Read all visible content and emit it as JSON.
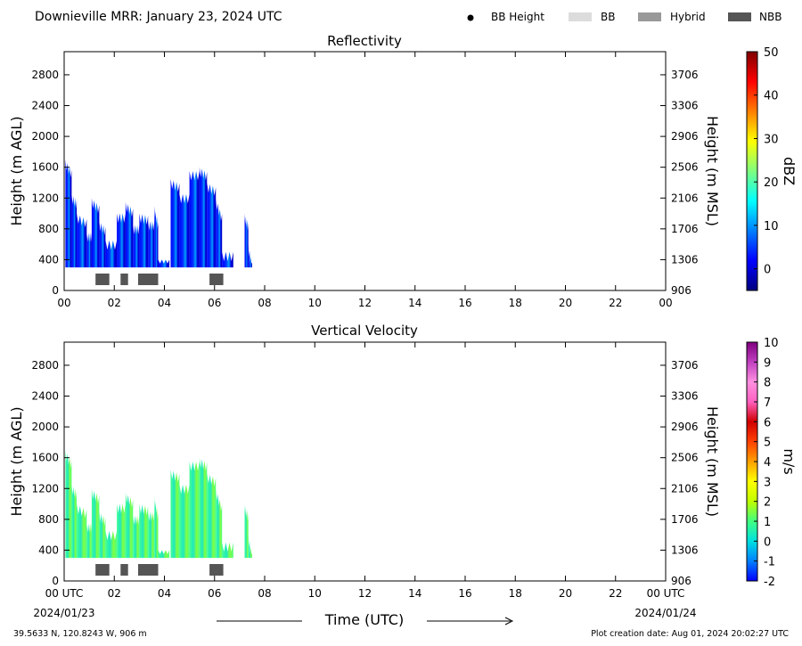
{
  "title": "Downieville MRR:  January 23, 2024 UTC",
  "legend": [
    {
      "label": "BB Height",
      "marker": "dot",
      "color": "#000000"
    },
    {
      "label": "BB",
      "marker": "rect",
      "color": "#dcdcdc"
    },
    {
      "label": "Hybrid",
      "marker": "rect",
      "color": "#999999"
    },
    {
      "label": "NBB",
      "marker": "rect",
      "color": "#555555"
    }
  ],
  "footer": {
    "location": "39.5633 N, 120.8243 W, 906 m",
    "creation": "Plot creation date: Aug 01, 2024 20:02:27 UTC"
  },
  "x_axis": {
    "label": "Time (UTC)",
    "start_label": "00 UTC",
    "start_date": "2024/01/23",
    "end_label": "00 UTC",
    "end_date": "2024/01/24"
  },
  "chart_data": [
    {
      "type": "heatmap",
      "title": "Reflectivity",
      "ylabel": "Height (m AGL)",
      "ylabel_right": "Height (m MSL)",
      "xlim": [
        0,
        24
      ],
      "ylim": [
        0,
        3100
      ],
      "x_ticks": [
        "00",
        "02",
        "04",
        "06",
        "08",
        "10",
        "12",
        "14",
        "16",
        "18",
        "20",
        "22",
        "00"
      ],
      "y_ticks": [
        0,
        400,
        800,
        1200,
        1600,
        2000,
        2400,
        2800
      ],
      "y_ticks_right": [
        906,
        1306,
        1706,
        2106,
        2506,
        2906,
        3306,
        3706
      ],
      "colorbar": {
        "label": "dBZ",
        "min": -5,
        "max": 50,
        "ticks": [
          0,
          10,
          20,
          30,
          40,
          50
        ],
        "colormap": [
          "#00007f",
          "#0000ff",
          "#007fff",
          "#00ffff",
          "#7fff7f",
          "#ffff00",
          "#ff7f00",
          "#ff0000",
          "#7f0000"
        ]
      },
      "echo_tops_m": [
        [
          0.05,
          1700
        ],
        [
          0.3,
          1250
        ],
        [
          0.5,
          1000
        ],
        [
          0.9,
          750
        ],
        [
          1.1,
          1200
        ],
        [
          1.4,
          900
        ],
        [
          1.65,
          650
        ],
        [
          2.1,
          1000
        ],
        [
          2.45,
          1150
        ],
        [
          2.75,
          850
        ],
        [
          3.0,
          1000
        ],
        [
          3.35,
          900
        ],
        [
          3.6,
          1100
        ],
        [
          3.75,
          400
        ],
        [
          4.25,
          1450
        ],
        [
          4.6,
          1250
        ],
        [
          5.0,
          1550
        ],
        [
          5.4,
          1600
        ],
        [
          5.7,
          1400
        ],
        [
          6.05,
          1200
        ],
        [
          6.3,
          500
        ],
        [
          7.2,
          1000
        ],
        [
          7.35,
          600
        ]
      ],
      "echo_base_m": 300,
      "bb_classes": [
        {
          "class": "NBB",
          "start": 1.25,
          "end": 1.8
        },
        {
          "class": "NBB",
          "start": 2.25,
          "end": 2.55
        },
        {
          "class": "NBB",
          "start": 2.95,
          "end": 3.75
        },
        {
          "class": "NBB",
          "start": 5.8,
          "end": 6.35
        }
      ]
    },
    {
      "type": "heatmap",
      "title": "Vertical Velocity",
      "ylabel": "Height (m AGL)",
      "ylabel_right": "Height (m MSL)",
      "xlim": [
        0,
        24
      ],
      "ylim": [
        0,
        3100
      ],
      "x_ticks": [
        "00 UTC",
        "02",
        "04",
        "06",
        "08",
        "10",
        "12",
        "14",
        "16",
        "18",
        "20",
        "22",
        "00 UTC"
      ],
      "y_ticks": [
        0,
        400,
        800,
        1200,
        1600,
        2000,
        2400,
        2800
      ],
      "y_ticks_right": [
        906,
        1306,
        1706,
        2106,
        2506,
        2906,
        3306,
        3706
      ],
      "colorbar": {
        "label": "m/s",
        "min": -2,
        "max": 10,
        "ticks": [
          -2,
          -1,
          0,
          1,
          2,
          3,
          4,
          5,
          6,
          7,
          8,
          9,
          10
        ],
        "colormap": [
          "#0000ff",
          "#0080ff",
          "#00e0e0",
          "#40ff80",
          "#c0ff00",
          "#ffff00",
          "#ffa000",
          "#ff4000",
          "#d00000",
          "#ff60c0",
          "#ff90e0",
          "#c040c0",
          "#800080"
        ]
      },
      "echo_tops_m": [
        [
          0.05,
          1700
        ],
        [
          0.3,
          1250
        ],
        [
          0.5,
          1000
        ],
        [
          0.9,
          750
        ],
        [
          1.1,
          1200
        ],
        [
          1.4,
          900
        ],
        [
          1.65,
          650
        ],
        [
          2.1,
          1000
        ],
        [
          2.45,
          1150
        ],
        [
          2.75,
          850
        ],
        [
          3.0,
          1000
        ],
        [
          3.35,
          900
        ],
        [
          3.6,
          1100
        ],
        [
          3.75,
          400
        ],
        [
          4.25,
          1450
        ],
        [
          4.6,
          1250
        ],
        [
          5.0,
          1550
        ],
        [
          5.4,
          1600
        ],
        [
          5.7,
          1400
        ],
        [
          6.05,
          1200
        ],
        [
          6.3,
          500
        ],
        [
          7.2,
          1000
        ],
        [
          7.35,
          600
        ]
      ],
      "echo_base_m": 300,
      "bb_classes": [
        {
          "class": "NBB",
          "start": 1.25,
          "end": 1.8
        },
        {
          "class": "NBB",
          "start": 2.25,
          "end": 2.55
        },
        {
          "class": "NBB",
          "start": 2.95,
          "end": 3.75
        },
        {
          "class": "NBB",
          "start": 5.8,
          "end": 6.35
        }
      ]
    }
  ]
}
